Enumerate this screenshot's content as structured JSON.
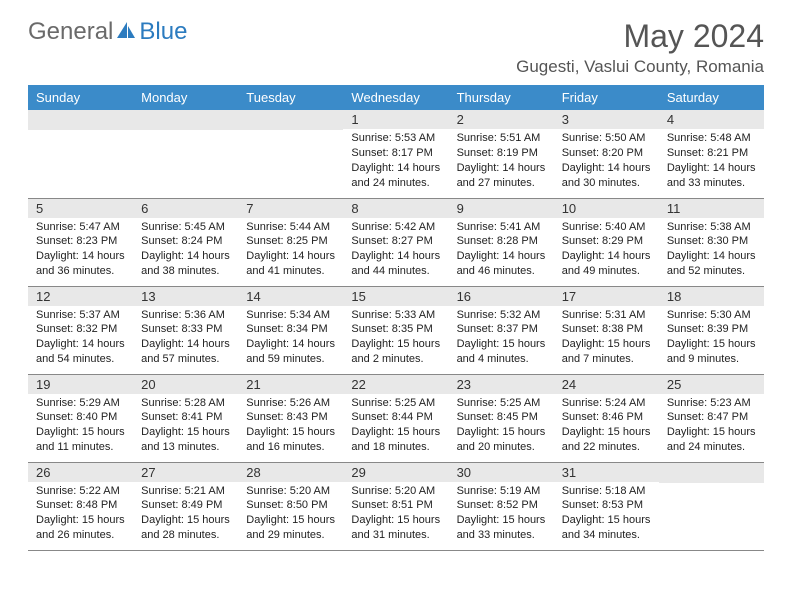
{
  "brand": {
    "part1": "General",
    "part2": "Blue"
  },
  "title": "May 2024",
  "location": "Gugesti, Vaslui County, Romania",
  "colors": {
    "header_bg": "#3b8bc9",
    "header_text": "#ffffff",
    "daynum_bg": "#e8e8e8",
    "border": "#888888",
    "title_color": "#555555",
    "logo_gray": "#6a6a6a",
    "logo_blue": "#2b7bbf"
  },
  "fonts": {
    "title_pt": 32,
    "location_pt": 17,
    "dayhead_pt": 13,
    "daynum_pt": 13,
    "body_pt": 11
  },
  "day_headers": [
    "Sunday",
    "Monday",
    "Tuesday",
    "Wednesday",
    "Thursday",
    "Friday",
    "Saturday"
  ],
  "weeks": [
    [
      null,
      null,
      null,
      {
        "n": "1",
        "sr": "Sunrise: 5:53 AM",
        "ss": "Sunset: 8:17 PM",
        "dl1": "Daylight: 14 hours",
        "dl2": "and 24 minutes."
      },
      {
        "n": "2",
        "sr": "Sunrise: 5:51 AM",
        "ss": "Sunset: 8:19 PM",
        "dl1": "Daylight: 14 hours",
        "dl2": "and 27 minutes."
      },
      {
        "n": "3",
        "sr": "Sunrise: 5:50 AM",
        "ss": "Sunset: 8:20 PM",
        "dl1": "Daylight: 14 hours",
        "dl2": "and 30 minutes."
      },
      {
        "n": "4",
        "sr": "Sunrise: 5:48 AM",
        "ss": "Sunset: 8:21 PM",
        "dl1": "Daylight: 14 hours",
        "dl2": "and 33 minutes."
      }
    ],
    [
      {
        "n": "5",
        "sr": "Sunrise: 5:47 AM",
        "ss": "Sunset: 8:23 PM",
        "dl1": "Daylight: 14 hours",
        "dl2": "and 36 minutes."
      },
      {
        "n": "6",
        "sr": "Sunrise: 5:45 AM",
        "ss": "Sunset: 8:24 PM",
        "dl1": "Daylight: 14 hours",
        "dl2": "and 38 minutes."
      },
      {
        "n": "7",
        "sr": "Sunrise: 5:44 AM",
        "ss": "Sunset: 8:25 PM",
        "dl1": "Daylight: 14 hours",
        "dl2": "and 41 minutes."
      },
      {
        "n": "8",
        "sr": "Sunrise: 5:42 AM",
        "ss": "Sunset: 8:27 PM",
        "dl1": "Daylight: 14 hours",
        "dl2": "and 44 minutes."
      },
      {
        "n": "9",
        "sr": "Sunrise: 5:41 AM",
        "ss": "Sunset: 8:28 PM",
        "dl1": "Daylight: 14 hours",
        "dl2": "and 46 minutes."
      },
      {
        "n": "10",
        "sr": "Sunrise: 5:40 AM",
        "ss": "Sunset: 8:29 PM",
        "dl1": "Daylight: 14 hours",
        "dl2": "and 49 minutes."
      },
      {
        "n": "11",
        "sr": "Sunrise: 5:38 AM",
        "ss": "Sunset: 8:30 PM",
        "dl1": "Daylight: 14 hours",
        "dl2": "and 52 minutes."
      }
    ],
    [
      {
        "n": "12",
        "sr": "Sunrise: 5:37 AM",
        "ss": "Sunset: 8:32 PM",
        "dl1": "Daylight: 14 hours",
        "dl2": "and 54 minutes."
      },
      {
        "n": "13",
        "sr": "Sunrise: 5:36 AM",
        "ss": "Sunset: 8:33 PM",
        "dl1": "Daylight: 14 hours",
        "dl2": "and 57 minutes."
      },
      {
        "n": "14",
        "sr": "Sunrise: 5:34 AM",
        "ss": "Sunset: 8:34 PM",
        "dl1": "Daylight: 14 hours",
        "dl2": "and 59 minutes."
      },
      {
        "n": "15",
        "sr": "Sunrise: 5:33 AM",
        "ss": "Sunset: 8:35 PM",
        "dl1": "Daylight: 15 hours",
        "dl2": "and 2 minutes."
      },
      {
        "n": "16",
        "sr": "Sunrise: 5:32 AM",
        "ss": "Sunset: 8:37 PM",
        "dl1": "Daylight: 15 hours",
        "dl2": "and 4 minutes."
      },
      {
        "n": "17",
        "sr": "Sunrise: 5:31 AM",
        "ss": "Sunset: 8:38 PM",
        "dl1": "Daylight: 15 hours",
        "dl2": "and 7 minutes."
      },
      {
        "n": "18",
        "sr": "Sunrise: 5:30 AM",
        "ss": "Sunset: 8:39 PM",
        "dl1": "Daylight: 15 hours",
        "dl2": "and 9 minutes."
      }
    ],
    [
      {
        "n": "19",
        "sr": "Sunrise: 5:29 AM",
        "ss": "Sunset: 8:40 PM",
        "dl1": "Daylight: 15 hours",
        "dl2": "and 11 minutes."
      },
      {
        "n": "20",
        "sr": "Sunrise: 5:28 AM",
        "ss": "Sunset: 8:41 PM",
        "dl1": "Daylight: 15 hours",
        "dl2": "and 13 minutes."
      },
      {
        "n": "21",
        "sr": "Sunrise: 5:26 AM",
        "ss": "Sunset: 8:43 PM",
        "dl1": "Daylight: 15 hours",
        "dl2": "and 16 minutes."
      },
      {
        "n": "22",
        "sr": "Sunrise: 5:25 AM",
        "ss": "Sunset: 8:44 PM",
        "dl1": "Daylight: 15 hours",
        "dl2": "and 18 minutes."
      },
      {
        "n": "23",
        "sr": "Sunrise: 5:25 AM",
        "ss": "Sunset: 8:45 PM",
        "dl1": "Daylight: 15 hours",
        "dl2": "and 20 minutes."
      },
      {
        "n": "24",
        "sr": "Sunrise: 5:24 AM",
        "ss": "Sunset: 8:46 PM",
        "dl1": "Daylight: 15 hours",
        "dl2": "and 22 minutes."
      },
      {
        "n": "25",
        "sr": "Sunrise: 5:23 AM",
        "ss": "Sunset: 8:47 PM",
        "dl1": "Daylight: 15 hours",
        "dl2": "and 24 minutes."
      }
    ],
    [
      {
        "n": "26",
        "sr": "Sunrise: 5:22 AM",
        "ss": "Sunset: 8:48 PM",
        "dl1": "Daylight: 15 hours",
        "dl2": "and 26 minutes."
      },
      {
        "n": "27",
        "sr": "Sunrise: 5:21 AM",
        "ss": "Sunset: 8:49 PM",
        "dl1": "Daylight: 15 hours",
        "dl2": "and 28 minutes."
      },
      {
        "n": "28",
        "sr": "Sunrise: 5:20 AM",
        "ss": "Sunset: 8:50 PM",
        "dl1": "Daylight: 15 hours",
        "dl2": "and 29 minutes."
      },
      {
        "n": "29",
        "sr": "Sunrise: 5:20 AM",
        "ss": "Sunset: 8:51 PM",
        "dl1": "Daylight: 15 hours",
        "dl2": "and 31 minutes."
      },
      {
        "n": "30",
        "sr": "Sunrise: 5:19 AM",
        "ss": "Sunset: 8:52 PM",
        "dl1": "Daylight: 15 hours",
        "dl2": "and 33 minutes."
      },
      {
        "n": "31",
        "sr": "Sunrise: 5:18 AM",
        "ss": "Sunset: 8:53 PM",
        "dl1": "Daylight: 15 hours",
        "dl2": "and 34 minutes."
      },
      null
    ]
  ]
}
